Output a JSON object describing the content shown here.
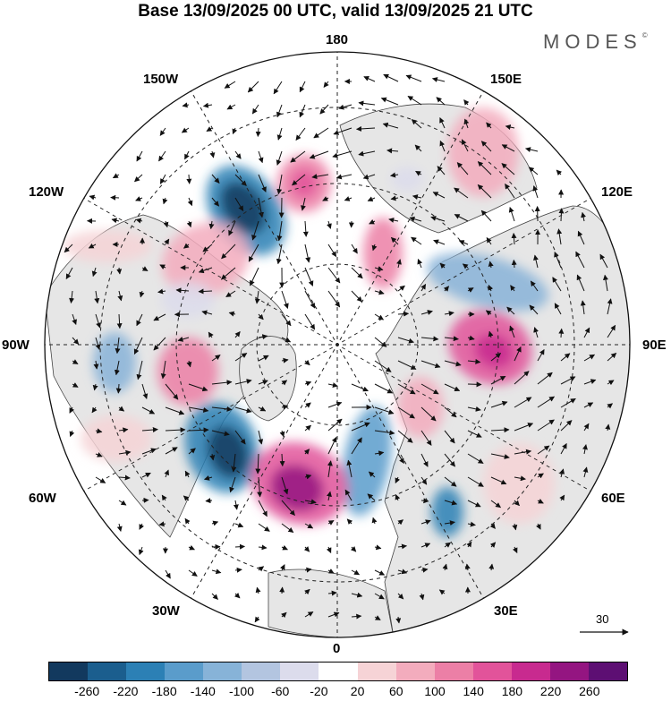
{
  "title": "Base 13/09/2025 00 UTC, valid 13/09/2025 21 UTC",
  "logo": "MODES",
  "logo_mark": "©",
  "longitude_labels": {
    "top": "180",
    "top_left": "150W",
    "top_right": "150E",
    "left_upper": "120W",
    "right_upper": "120E",
    "left": "90W",
    "right": "90E",
    "left_lower": "60W",
    "right_lower": "60E",
    "bottom_left": "30W",
    "bottom_right": "30E",
    "bottom": "0"
  },
  "reference_vector": "30",
  "colorbar": {
    "colors": [
      "#12395e",
      "#1b5e8e",
      "#2c80b5",
      "#5a9ccb",
      "#87b3d8",
      "#b3c5e0",
      "#dcdcec",
      "#ffffff",
      "#f6d3d6",
      "#f3acbd",
      "#ec7fa6",
      "#e2539a",
      "#c82a8f",
      "#941581",
      "#5d0f73"
    ],
    "labels": [
      "-260",
      "-220",
      "-180",
      "-140",
      "-100",
      "-60",
      "-20",
      "20",
      "60",
      "100",
      "140",
      "180",
      "220",
      "260"
    ]
  },
  "colors": {
    "land": "#e6e6e6",
    "ocean": "#ffffff",
    "graticule": "#222222"
  }
}
